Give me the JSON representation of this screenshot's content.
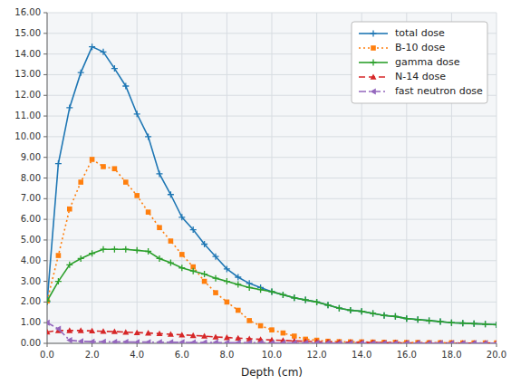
{
  "chart_data": {
    "type": "line",
    "x_label": "Depth (cm)",
    "x": [
      0.0,
      0.5,
      1.0,
      1.5,
      2.0,
      2.5,
      3.0,
      3.5,
      4.0,
      4.5,
      5.0,
      5.5,
      6.0,
      6.5,
      7.0,
      7.5,
      8.0,
      8.5,
      9.0,
      9.5,
      10.0,
      10.5,
      11.0,
      11.5,
      12.0,
      12.5,
      13.0,
      13.5,
      14.0,
      14.5,
      15.0,
      15.5,
      16.0,
      16.5,
      17.0,
      17.5,
      18.0,
      18.5,
      19.0,
      19.5,
      20.0
    ],
    "series": [
      {
        "name": "total dose",
        "marker": "plus",
        "line_style": "solid",
        "values": [
          2.0,
          8.7,
          11.4,
          13.1,
          14.35,
          14.1,
          13.3,
          12.45,
          11.1,
          10.0,
          8.2,
          7.2,
          6.1,
          5.5,
          4.8,
          4.2,
          3.6,
          3.2,
          2.9,
          2.7,
          2.5,
          2.35,
          2.2,
          2.1,
          2.0,
          1.85,
          1.7,
          1.6,
          1.55,
          1.45,
          1.35,
          1.3,
          1.2,
          1.15,
          1.1,
          1.05,
          1.0,
          0.98,
          0.95,
          0.93,
          0.9
        ]
      },
      {
        "name": "B-10 dose",
        "marker": "square",
        "line_style": "dotted",
        "values": [
          2.05,
          4.25,
          6.5,
          7.8,
          8.9,
          8.55,
          8.45,
          7.8,
          7.15,
          6.35,
          5.6,
          4.95,
          4.3,
          3.7,
          3.0,
          2.45,
          2.0,
          1.6,
          1.1,
          0.85,
          0.65,
          0.5,
          0.35,
          0.2,
          0.15,
          0.1,
          0.08,
          0.07,
          0.07,
          0.06,
          0.05,
          0.05,
          0.04,
          0.04,
          0.03,
          0.03,
          0.03,
          0.02,
          0.02,
          0.02,
          0.02
        ]
      },
      {
        "name": "gamma dose",
        "marker": "plus",
        "line_style": "solid",
        "values": [
          2.05,
          3.0,
          3.8,
          4.1,
          4.35,
          4.55,
          4.55,
          4.55,
          4.5,
          4.45,
          4.1,
          3.9,
          3.65,
          3.5,
          3.35,
          3.15,
          3.0,
          2.85,
          2.7,
          2.6,
          2.5,
          2.35,
          2.2,
          2.1,
          2.0,
          1.85,
          1.7,
          1.6,
          1.55,
          1.45,
          1.35,
          1.3,
          1.2,
          1.15,
          1.1,
          1.05,
          1.0,
          0.98,
          0.95,
          0.93,
          0.9
        ]
      },
      {
        "name": "N-14 dose",
        "marker": "triangle-up",
        "line_style": "dashed",
        "values": [
          0.55,
          0.62,
          0.62,
          0.62,
          0.6,
          0.58,
          0.57,
          0.54,
          0.52,
          0.5,
          0.47,
          0.44,
          0.41,
          0.38,
          0.35,
          0.31,
          0.28,
          0.25,
          0.22,
          0.19,
          0.16,
          0.14,
          0.12,
          0.1,
          0.08,
          0.07,
          0.06,
          0.05,
          0.04,
          0.04,
          0.03,
          0.03,
          0.02,
          0.02,
          0.02,
          0.02,
          0.01,
          0.01,
          0.01,
          0.01,
          0.01
        ]
      },
      {
        "name": "fast neutron dose",
        "marker": "triangle-left",
        "line_style": "dashdot",
        "values": [
          1.0,
          0.7,
          0.15,
          0.1,
          0.08,
          0.08,
          0.07,
          0.07,
          0.06,
          0.06,
          0.05,
          0.05,
          0.05,
          0.04,
          0.04,
          0.04,
          0.03,
          0.03,
          0.03,
          0.03,
          0.02,
          0.02,
          0.02,
          0.02,
          0.02,
          0.02,
          0.01,
          0.01,
          0.01,
          0.01,
          0.01,
          0.01,
          0.01,
          0.01,
          0.01,
          0.01,
          0.01,
          0.01,
          0.01,
          0.01,
          0.01
        ]
      }
    ],
    "xlim": [
      0,
      20
    ],
    "ylim": [
      0,
      16
    ],
    "xticks": [
      {
        "value": 0,
        "label": "0.0"
      },
      {
        "value": 2,
        "label": "2.0"
      },
      {
        "value": 4,
        "label": "4.0"
      },
      {
        "value": 6,
        "label": "6.0"
      },
      {
        "value": 8,
        "label": "8.0"
      },
      {
        "value": 10,
        "label": "10.0"
      },
      {
        "value": 12,
        "label": "12.0"
      },
      {
        "value": 14,
        "label": "14.0"
      },
      {
        "value": 16,
        "label": "16.0"
      },
      {
        "value": 18,
        "label": "18.0"
      },
      {
        "value": 20,
        "label": "20.0"
      }
    ],
    "yticks": [
      {
        "value": 0,
        "label": "0.00"
      },
      {
        "value": 1,
        "label": "1.00"
      },
      {
        "value": 2,
        "label": "2.00"
      },
      {
        "value": 3,
        "label": "3.00"
      },
      {
        "value": 4,
        "label": "4.00"
      },
      {
        "value": 5,
        "label": "5.00"
      },
      {
        "value": 6,
        "label": "6.00"
      },
      {
        "value": 7,
        "label": "7.00"
      },
      {
        "value": 8,
        "label": "8.00"
      },
      {
        "value": 9,
        "label": "9.00"
      },
      {
        "value": 10,
        "label": "10.00"
      },
      {
        "value": 11,
        "label": "11.00"
      },
      {
        "value": 12,
        "label": "12.00"
      },
      {
        "value": 13,
        "label": "13.00"
      },
      {
        "value": 14,
        "label": "14.00"
      },
      {
        "value": 15,
        "label": "15.00"
      },
      {
        "value": 16,
        "label": "16.00"
      }
    ],
    "grid": true,
    "legend": "upper right"
  }
}
